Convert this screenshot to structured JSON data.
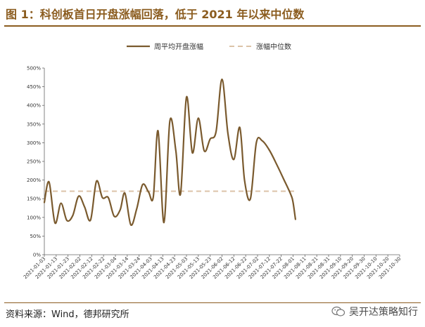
{
  "header": {
    "title": "图 1：科创板首日开盘涨幅回落，低于 2021 年以来中位数"
  },
  "footer": {
    "source": "资料来源：Wind，德邦研究所"
  },
  "watermark": {
    "text": "吴开达策略知行",
    "icon": "wechat-icon"
  },
  "colors": {
    "accent": "#8b5c1f",
    "line": "#7a5a2e",
    "median": "#dcc3a8",
    "axis": "#666666"
  },
  "chart_data": {
    "type": "line",
    "title": "",
    "xlabel": "",
    "ylabel": "",
    "ylim": [
      0,
      500
    ],
    "yticks": [
      0,
      50,
      100,
      150,
      200,
      250,
      300,
      350,
      400,
      450,
      500
    ],
    "ytick_labels": [
      "0%",
      "50%",
      "100%",
      "150%",
      "200%",
      "250%",
      "300%",
      "350%",
      "400%",
      "450%",
      "500%"
    ],
    "xtick_labels": [
      "2021-01-03",
      "2021-01-13",
      "2021-01-23",
      "2021-02-02",
      "2021-02-12",
      "2021-02-22",
      "2021-03-04",
      "2021-03-14",
      "2021-03-24",
      "2021-04-03",
      "2021-04-13",
      "2021-04-23",
      "2021-05-03",
      "2021-05-13",
      "2021-05-23",
      "2021-06-02",
      "2021-06-12",
      "2021-06-22",
      "2021-07-02",
      "2021-07-12",
      "2021-07-22",
      "2021-08-01",
      "2021-08-11",
      "2021-08-21",
      "2021-08-31",
      "2021-09-10",
      "2021-09-20",
      "2021-09-30",
      "2021-10-10",
      "2021-10-20",
      "2021-10-30"
    ],
    "x_start": "2021-01-03",
    "x_end": "2021-10-30",
    "legend": {
      "position": "top-center",
      "entries": [
        "周平均开盘涨幅",
        "涨幅中位数"
      ]
    },
    "series": [
      {
        "name": "周平均开盘涨幅",
        "style": "solid",
        "points": [
          {
            "x": "2021-01-03",
            "y": 140
          },
          {
            "x": "2021-01-07",
            "y": 195
          },
          {
            "x": "2021-01-12",
            "y": 85
          },
          {
            "x": "2021-01-17",
            "y": 138
          },
          {
            "x": "2021-01-22",
            "y": 92
          },
          {
            "x": "2021-01-27",
            "y": 105
          },
          {
            "x": "2021-02-01",
            "y": 157
          },
          {
            "x": "2021-02-06",
            "y": 128
          },
          {
            "x": "2021-02-11",
            "y": 93
          },
          {
            "x": "2021-02-16",
            "y": 197
          },
          {
            "x": "2021-02-21",
            "y": 153
          },
          {
            "x": "2021-02-26",
            "y": 153
          },
          {
            "x": "2021-03-03",
            "y": 103
          },
          {
            "x": "2021-03-08",
            "y": 120
          },
          {
            "x": "2021-03-12",
            "y": 165
          },
          {
            "x": "2021-03-17",
            "y": 80
          },
          {
            "x": "2021-03-22",
            "y": 123
          },
          {
            "x": "2021-03-27",
            "y": 188
          },
          {
            "x": "2021-04-01",
            "y": 168
          },
          {
            "x": "2021-04-05",
            "y": 155
          },
          {
            "x": "2021-04-09",
            "y": 332
          },
          {
            "x": "2021-04-14",
            "y": 86
          },
          {
            "x": "2021-04-19",
            "y": 358
          },
          {
            "x": "2021-04-24",
            "y": 280
          },
          {
            "x": "2021-04-28",
            "y": 163
          },
          {
            "x": "2021-05-03",
            "y": 422
          },
          {
            "x": "2021-05-08",
            "y": 273
          },
          {
            "x": "2021-05-13",
            "y": 366
          },
          {
            "x": "2021-05-18",
            "y": 278
          },
          {
            "x": "2021-05-23",
            "y": 310
          },
          {
            "x": "2021-05-28",
            "y": 330
          },
          {
            "x": "2021-06-02",
            "y": 470
          },
          {
            "x": "2021-06-07",
            "y": 325
          },
          {
            "x": "2021-06-12",
            "y": 255
          },
          {
            "x": "2021-06-17",
            "y": 341
          },
          {
            "x": "2021-06-21",
            "y": 200
          },
          {
            "x": "2021-06-26",
            "y": 150
          },
          {
            "x": "2021-07-01",
            "y": 300
          },
          {
            "x": "2021-07-06",
            "y": 305
          },
          {
            "x": "2021-07-12",
            "y": 280
          },
          {
            "x": "2021-07-18",
            "y": 243
          },
          {
            "x": "2021-07-24",
            "y": 203
          },
          {
            "x": "2021-07-30",
            "y": 162
          },
          {
            "x": "2021-08-01",
            "y": 140
          },
          {
            "x": "2021-08-03",
            "y": 95
          }
        ]
      },
      {
        "name": "涨幅中位数",
        "style": "dashed",
        "points": [
          {
            "x": "2021-01-03",
            "y": 170
          },
          {
            "x": "2021-08-03",
            "y": 170
          }
        ]
      }
    ]
  }
}
